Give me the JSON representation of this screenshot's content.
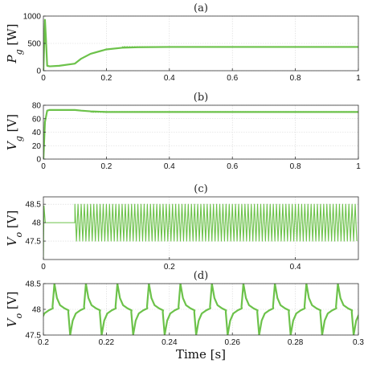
{
  "chart_data": [
    {
      "type": "line",
      "title": "(a)",
      "ylabel": "P_g [W]",
      "xlabel": "",
      "xlim": [
        0,
        1
      ],
      "ylim": [
        0,
        1000
      ],
      "xticks": [
        0,
        0.2,
        0.4,
        0.6,
        0.8,
        1
      ],
      "xtick_labels": [
        "0",
        "0.2",
        "0.4",
        "0.6",
        "0.8",
        "1"
      ],
      "yticks": [
        0,
        500,
        1000
      ],
      "ytick_labels": [
        "0",
        "500",
        "1000"
      ],
      "grid": true,
      "color": "#6cc24a",
      "series": [
        {
          "x": [
            0,
            0.005,
            0.008,
            0.012,
            0.02,
            0.05,
            0.1,
            0.12,
            0.15,
            0.2,
            0.25,
            0.3,
            0.4,
            0.5,
            0.6,
            0.8,
            1
          ],
          "y": [
            0,
            930,
            600,
            90,
            80,
            90,
            130,
            220,
            310,
            390,
            420,
            430,
            435,
            435,
            435,
            435,
            435
          ]
        }
      ]
    },
    {
      "type": "line",
      "title": "(b)",
      "ylabel": "V_g [V]",
      "xlabel": "",
      "xlim": [
        0,
        1
      ],
      "ylim": [
        0,
        80
      ],
      "xticks": [
        0,
        0.2,
        0.4,
        0.6,
        0.8,
        1
      ],
      "xtick_labels": [
        "0",
        "0.2",
        "0.4",
        "0.6",
        "0.8",
        "1"
      ],
      "yticks": [
        0,
        20,
        40,
        60,
        80
      ],
      "ytick_labels": [
        "0",
        "20",
        "40",
        "60",
        "80"
      ],
      "grid": true,
      "color": "#6cc24a",
      "series": [
        {
          "x": [
            0,
            0.005,
            0.012,
            0.02,
            0.1,
            0.12,
            0.15,
            0.2,
            0.3,
            0.5,
            1
          ],
          "y": [
            0,
            55,
            72,
            73,
            73,
            72,
            71,
            70,
            70,
            70,
            70
          ]
        }
      ]
    },
    {
      "type": "line",
      "title": "(c)",
      "ylabel": "V_o [V]",
      "xlabel": "",
      "xlim": [
        0,
        0.5
      ],
      "ylim": [
        47,
        48.7
      ],
      "xticks": [
        0,
        0.2,
        0.4
      ],
      "xtick_labels": [
        "0",
        "0.2",
        "0.4"
      ],
      "yticks": [
        47.5,
        48,
        48.5
      ],
      "ytick_labels": [
        "47.5",
        "48",
        "48.5"
      ],
      "grid": true,
      "color": "#6cc24a",
      "steady_value": 48,
      "ripple_start": 0.05,
      "ripple_min": 47.5,
      "ripple_max": 48.5,
      "ripple_period": 0.005
    },
    {
      "type": "line",
      "title": "(d)",
      "ylabel": "V_o [V]",
      "xlabel": "Time [s]",
      "xlim": [
        0.2,
        0.3
      ],
      "ylim": [
        47.5,
        48.5
      ],
      "xticks": [
        0.2,
        0.22,
        0.24,
        0.26,
        0.28,
        0.3
      ],
      "xtick_labels": [
        "0.2",
        "0.22",
        "0.24",
        "0.26",
        "0.28",
        "0.3"
      ],
      "yticks": [
        47.5,
        48,
        48.5
      ],
      "ytick_labels": [
        "47.5",
        "48",
        "48.5"
      ],
      "grid": true,
      "color": "#6cc24a",
      "period": 0.01,
      "peak_offset": 0.0035,
      "trough_offset": 0.0085
    }
  ]
}
